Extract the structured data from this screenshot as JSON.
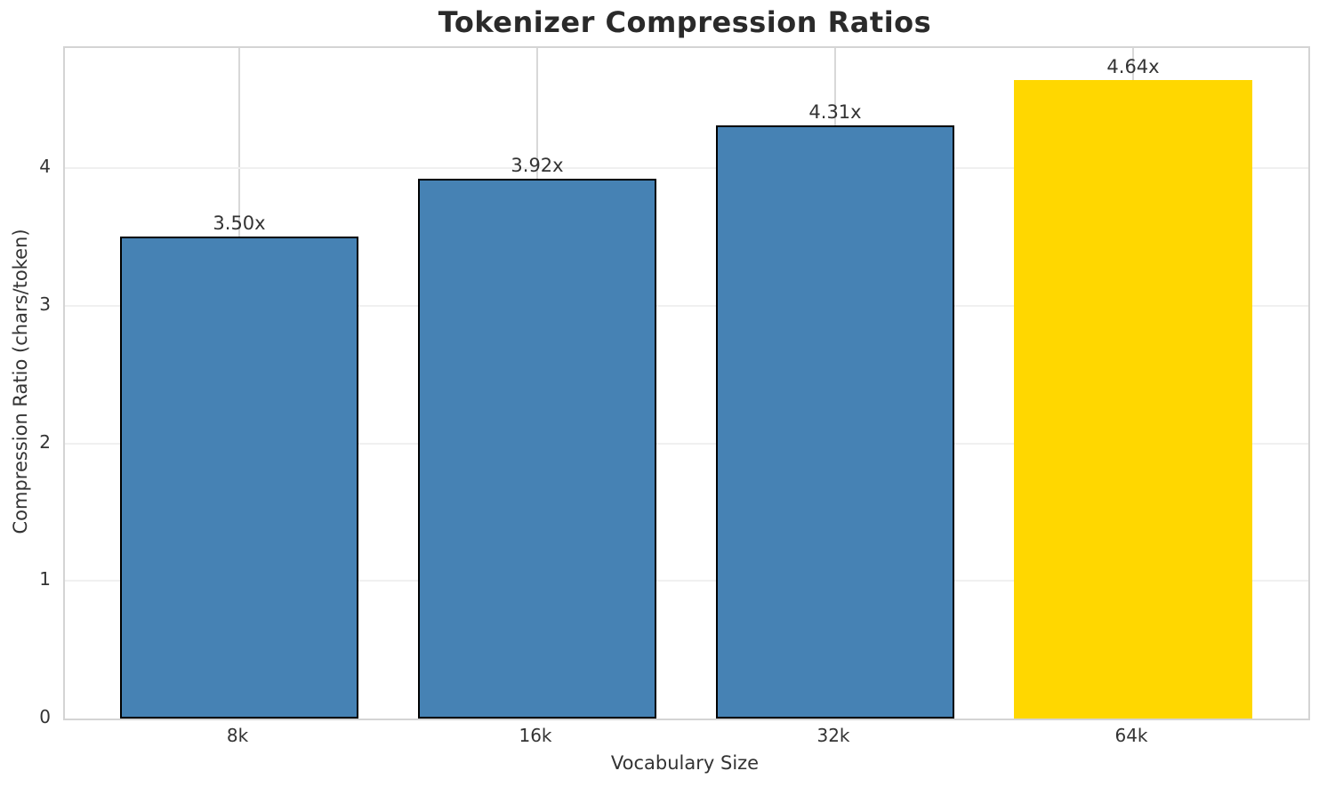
{
  "title": "Tokenizer Compression Ratios",
  "chart_data": {
    "type": "bar",
    "title": "Tokenizer Compression Ratios",
    "xlabel": "Vocabulary Size",
    "ylabel": "Compression Ratio (chars/token)",
    "categories": [
      "8k",
      "16k",
      "32k",
      "64k"
    ],
    "values": [
      3.5,
      3.92,
      4.31,
      4.64
    ],
    "bar_labels": [
      "3.50x",
      "3.92x",
      "4.31x",
      "4.64x"
    ],
    "bar_colors": [
      "#4682B4",
      "#4682B4",
      "#4682B4",
      "#FFD700"
    ],
    "bar_edge_colors": [
      "#000000",
      "#000000",
      "#000000",
      "none"
    ],
    "yticks": [
      0,
      1,
      2,
      3,
      4
    ],
    "ylim": [
      0,
      4.873
    ],
    "grid": true,
    "legend": "none",
    "series_color": "#4682B4",
    "highlight_color": "#FFD700"
  }
}
